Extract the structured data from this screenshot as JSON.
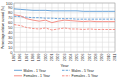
{
  "chart_data": {
    "type": "line",
    "x": [
      1995,
      1996,
      1997,
      1998,
      1999,
      2000,
      2001,
      2002,
      2003,
      2004,
      2005,
      2006,
      2007,
      2008,
      2009,
      2010,
      2011
    ],
    "series": [
      {
        "name": "Males - 1 Year",
        "color": "#5B9BD5",
        "line_style": "solid",
        "values": [
          88,
          87,
          86,
          85,
          85,
          85,
          84,
          84,
          84,
          84,
          84,
          83,
          83,
          83,
          83,
          83,
          83
        ]
      },
      {
        "name": "Males - 5 Year",
        "color": "#5B9BD5",
        "line_style": "dashed",
        "values": [
          73,
          72,
          71,
          70,
          70,
          69,
          69,
          68,
          68,
          68,
          67,
          67,
          67,
          67,
          67,
          67,
          67
        ]
      },
      {
        "name": "Females - 1 Year",
        "color": "#F4857A",
        "line_style": "solid",
        "values": [
          76,
          74,
          68,
          65,
          63,
          65,
          60,
          63,
          65,
          64,
          63,
          62,
          63,
          62,
          62,
          62,
          62
        ]
      },
      {
        "name": "Females - 5 Year",
        "color": "#F4857A",
        "line_style": "dashed",
        "values": [
          56,
          54,
          50,
          48,
          47,
          49,
          45,
          47,
          49,
          47,
          47,
          46,
          47,
          46,
          46,
          46,
          46
        ]
      }
    ],
    "xlabel": "Year",
    "ylabel": "Percentage relative survival (%)",
    "xlim": [
      1995,
      2011
    ],
    "xticks": [
      1995,
      1996,
      1997,
      1998,
      1999,
      2000,
      2001,
      2002,
      2003,
      2004,
      2005,
      2006,
      2007,
      2008,
      2009,
      2010,
      2011
    ],
    "ylim": [
      0,
      100
    ],
    "yticks": [
      0,
      10,
      20,
      30,
      40,
      50,
      60,
      70,
      80,
      90,
      100
    ],
    "grid": true,
    "legend": "bottom"
  }
}
